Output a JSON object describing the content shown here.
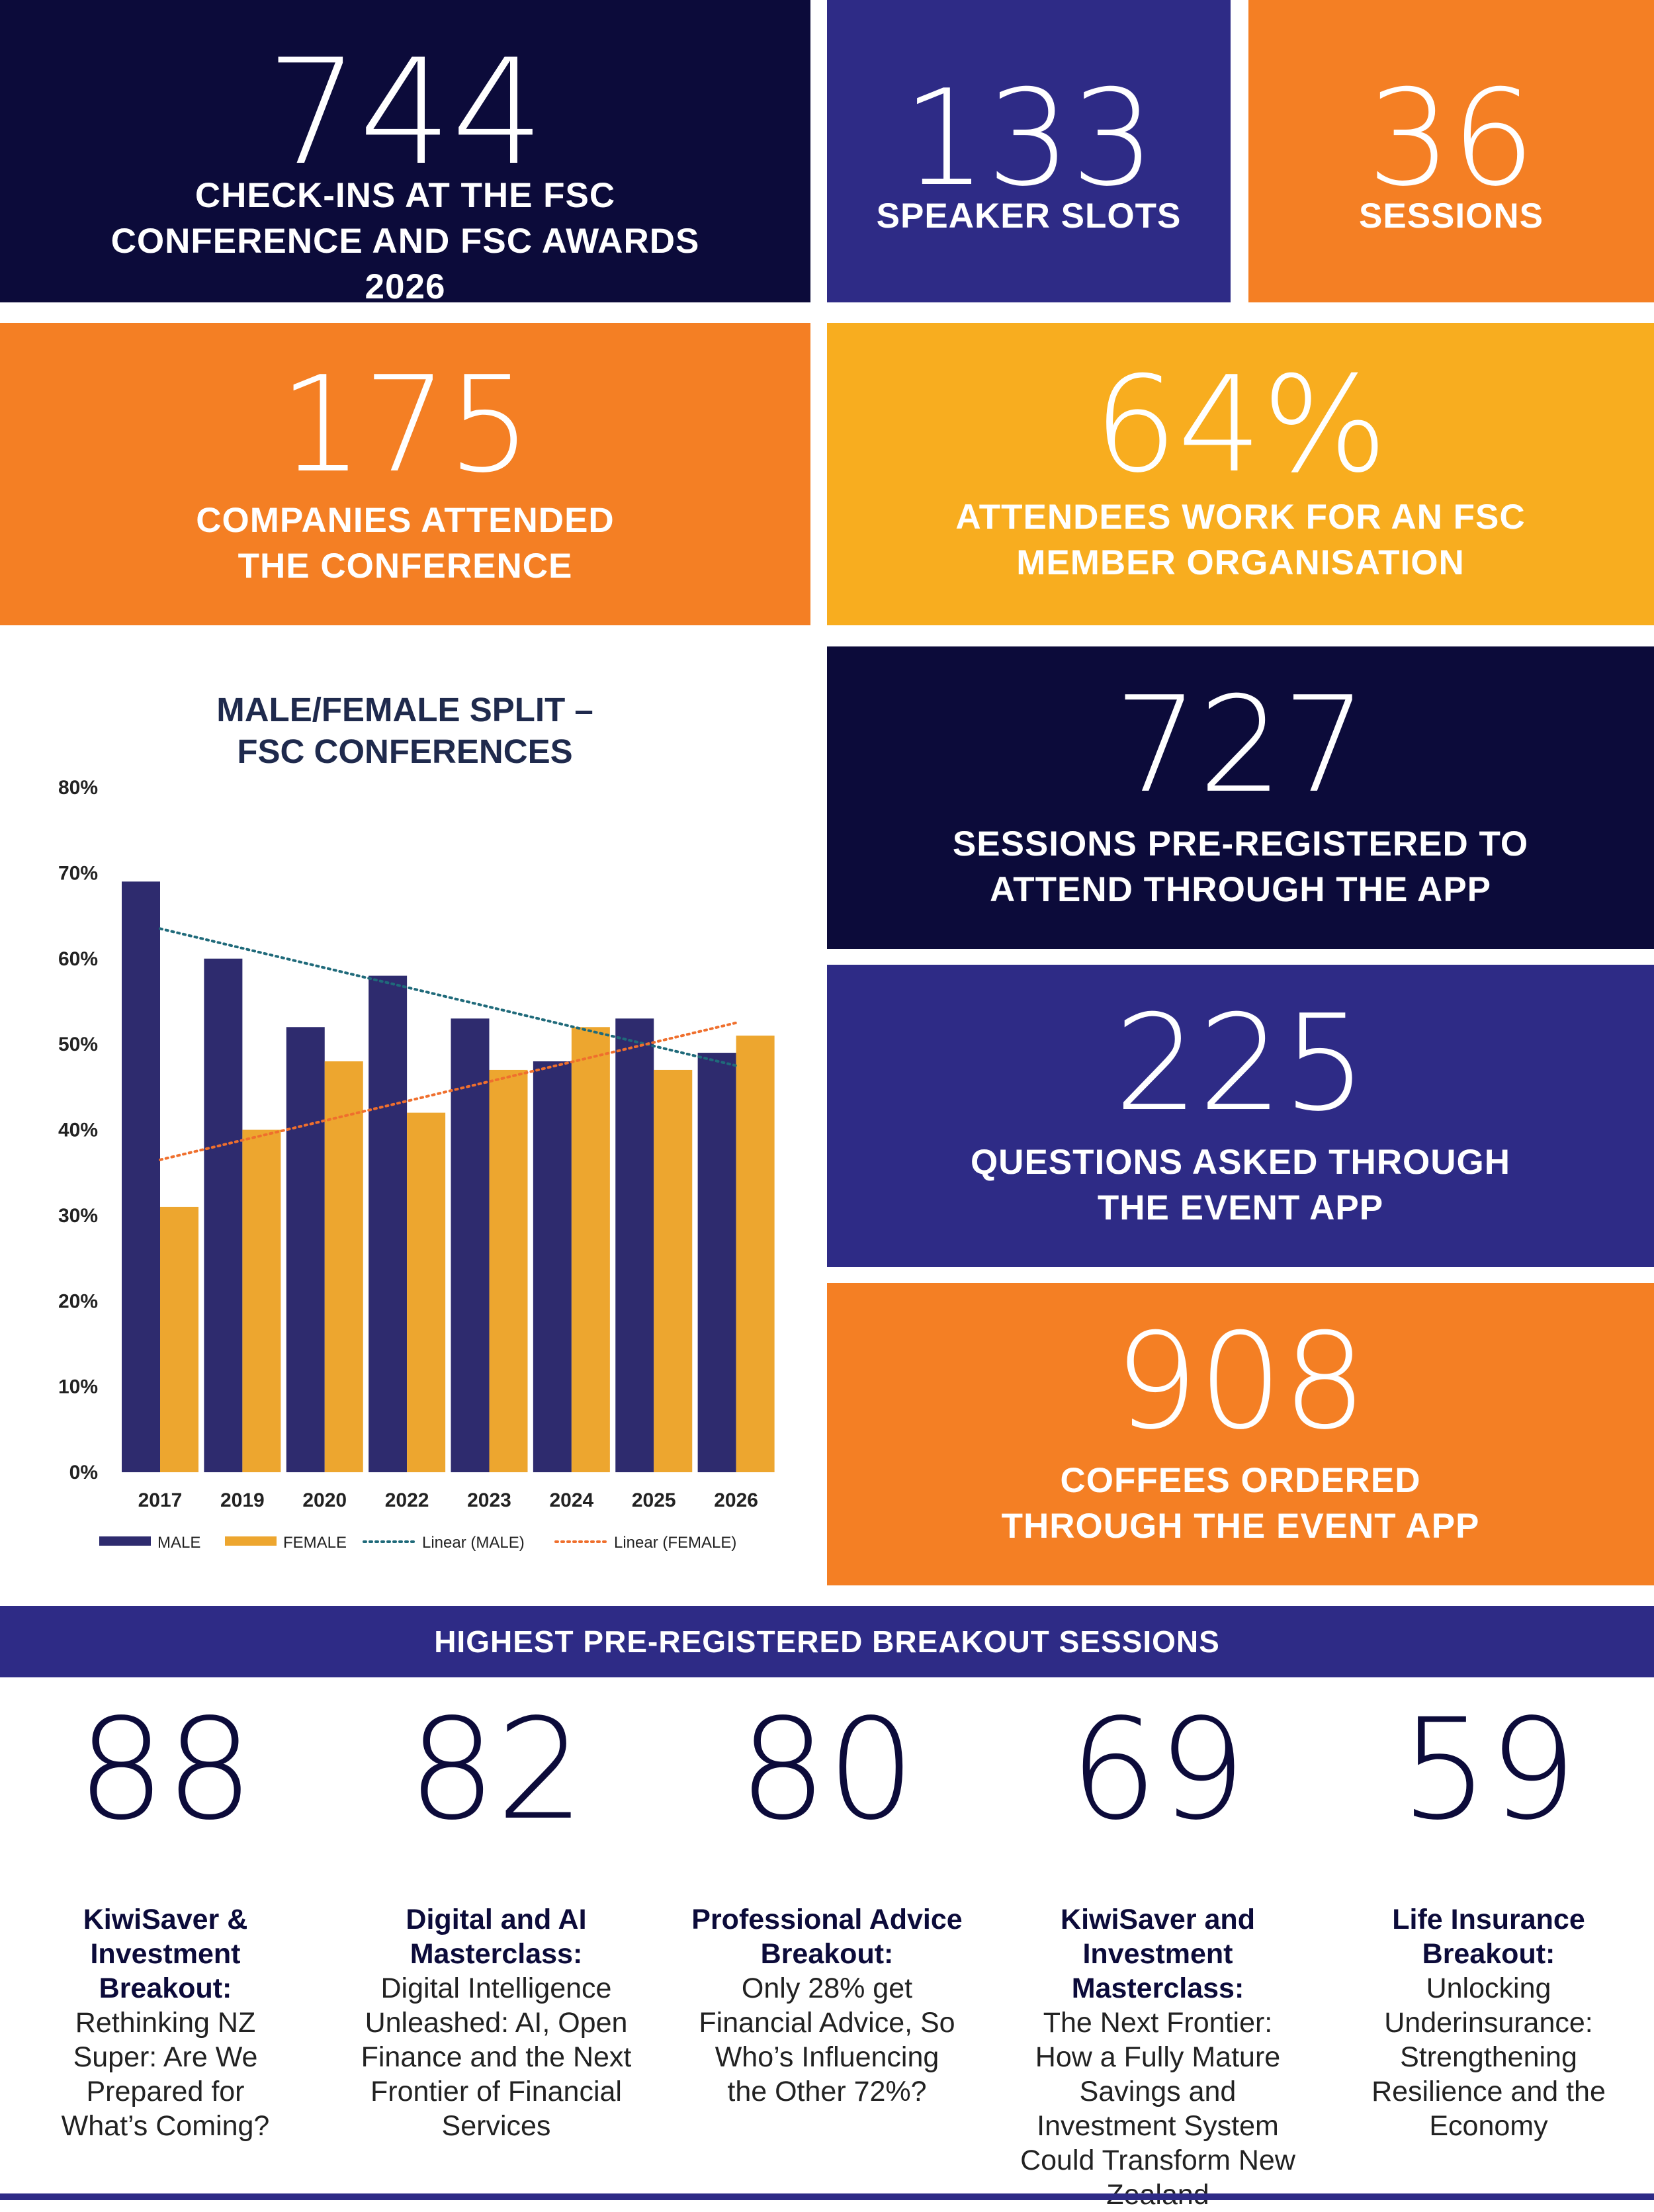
{
  "stats": {
    "checkins": {
      "value": "744",
      "label": "CHECK-INS AT THE FSC CONFERENCE AND FSC AWARDS 2026"
    },
    "speakers": {
      "value": "133",
      "label": "SPEAKER SLOTS"
    },
    "sessions": {
      "value": "36",
      "label": "SESSIONS"
    },
    "companies": {
      "value": "175",
      "label": "COMPANIES ATTENDED THE CONFERENCE"
    },
    "member": {
      "value": "64%",
      "label": "ATTENDEES WORK FOR AN FSC MEMBER ORGANISATION"
    },
    "prereg": {
      "value": "727",
      "label": "SESSIONS PRE-REGISTERED TO ATTEND THROUGH THE APP"
    },
    "questions": {
      "value": "225",
      "label": "QUESTIONS ASKED THROUGH THE EVENT APP"
    },
    "coffees": {
      "value": "908",
      "label": "COFFEES ORDERED THROUGH THE EVENT APP"
    }
  },
  "colors": {
    "navy": "#0c0b3a",
    "indigo": "#2e2b86",
    "orange": "#f47f24",
    "amber": "#f8ad1f",
    "male": "#2e2b6e",
    "female": "#eda62f",
    "trend_male": "#1f6a7a",
    "trend_female": "#ef6f2d"
  },
  "chart_data": {
    "type": "bar",
    "title": "MALE/FEMALE SPLIT – FSC CONFERENCES",
    "categories": [
      "2017",
      "2019",
      "2020",
      "2022",
      "2023",
      "2024",
      "2025",
      "2026"
    ],
    "series": [
      {
        "name": "MALE",
        "values": [
          69,
          60,
          52,
          58,
          53,
          48,
          53,
          49
        ]
      },
      {
        "name": "FEMALE",
        "values": [
          31,
          40,
          48,
          42,
          47,
          52,
          47,
          51
        ]
      }
    ],
    "trendlines": [
      {
        "name": "Linear (MALE)",
        "style": "dotted",
        "start": 63.5,
        "end": 47.5
      },
      {
        "name": "Linear (FEMALE)",
        "style": "dotted",
        "start": 36.5,
        "end": 52.5
      }
    ],
    "ylim": [
      0,
      80
    ],
    "yticks": [
      "0%",
      "10%",
      "20%",
      "30%",
      "40%",
      "50%",
      "60%",
      "70%",
      "80%"
    ],
    "grid": false,
    "legend": "bottom"
  },
  "breakout": {
    "heading": "HIGHEST PRE-REGISTERED BREAKOUT SESSIONS",
    "items": [
      {
        "num": "88",
        "title": "KiwiSaver & Investment Breakout:",
        "desc": "Rethinking NZ Super: Are We Prepared for What’s Coming?"
      },
      {
        "num": "82",
        "title": "Digital and AI Masterclass:",
        "desc": "Digital Intelligence Unleashed: AI, Open Finance and the Next Frontier of Financial Services"
      },
      {
        "num": "80",
        "title": "Professional Advice Breakout:",
        "desc": "Only 28% get Financial Advice, So Who’s Influencing the Other 72%?"
      },
      {
        "num": "69",
        "title": "KiwiSaver and Investment Masterclass:",
        "desc": "The Next Frontier: How a Fully Mature Savings and Investment System Could Transform New Zealand"
      },
      {
        "num": "59",
        "title": "Life Insurance Breakout:",
        "desc": "Unlocking Underinsurance: Strengthening Resilience and the Economy"
      }
    ]
  }
}
